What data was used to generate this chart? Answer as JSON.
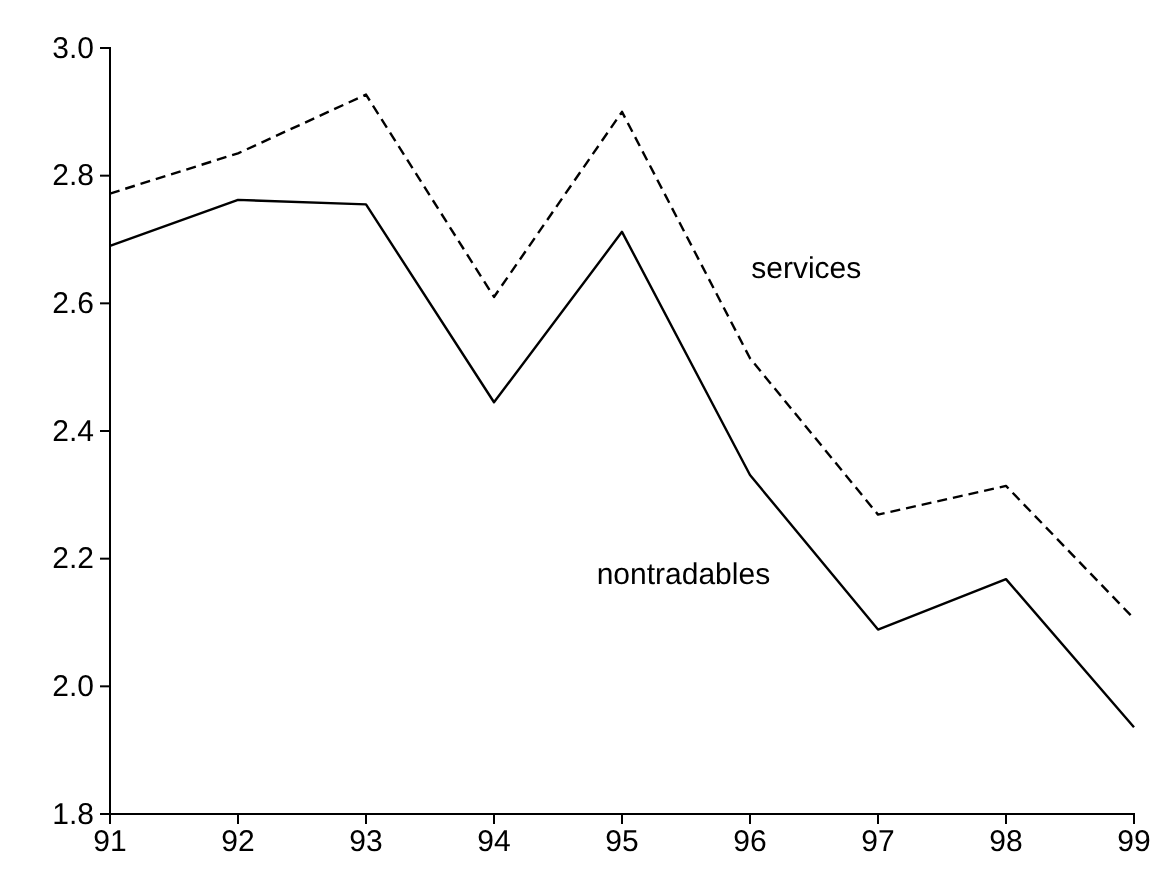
{
  "chart_data": {
    "type": "line",
    "x": [
      91,
      92,
      93,
      94,
      95,
      96,
      97,
      98,
      99
    ],
    "xlim": [
      91,
      99
    ],
    "xticks": [
      91,
      92,
      93,
      94,
      95,
      96,
      97,
      98,
      99
    ],
    "ylim": [
      1.8,
      3.0
    ],
    "yticks": [
      {
        "value": 1.8,
        "label": "1.8"
      },
      {
        "value": 2.0,
        "label": "2.0"
      },
      {
        "value": 2.2,
        "label": "2.2"
      },
      {
        "value": 2.4,
        "label": "2.4"
      },
      {
        "value": 2.6,
        "label": "2.6"
      },
      {
        "value": 2.8,
        "label": "2.8"
      },
      {
        "value": 3.0,
        "label": "3.0"
      }
    ],
    "grid": false,
    "legend": false,
    "marker": "none",
    "series": [
      {
        "name": "nontradables",
        "color": "#000000",
        "line_style": "solid",
        "values": [
          2.69,
          2.762,
          2.755,
          2.445,
          2.712,
          2.331,
          2.089,
          2.168,
          1.936
        ]
      },
      {
        "name": "services",
        "color": "#000000",
        "line_style": "dashed",
        "values": [
          2.772,
          2.835,
          2.927,
          2.61,
          2.9,
          2.514,
          2.269,
          2.314,
          2.106
        ]
      }
    ]
  }
}
